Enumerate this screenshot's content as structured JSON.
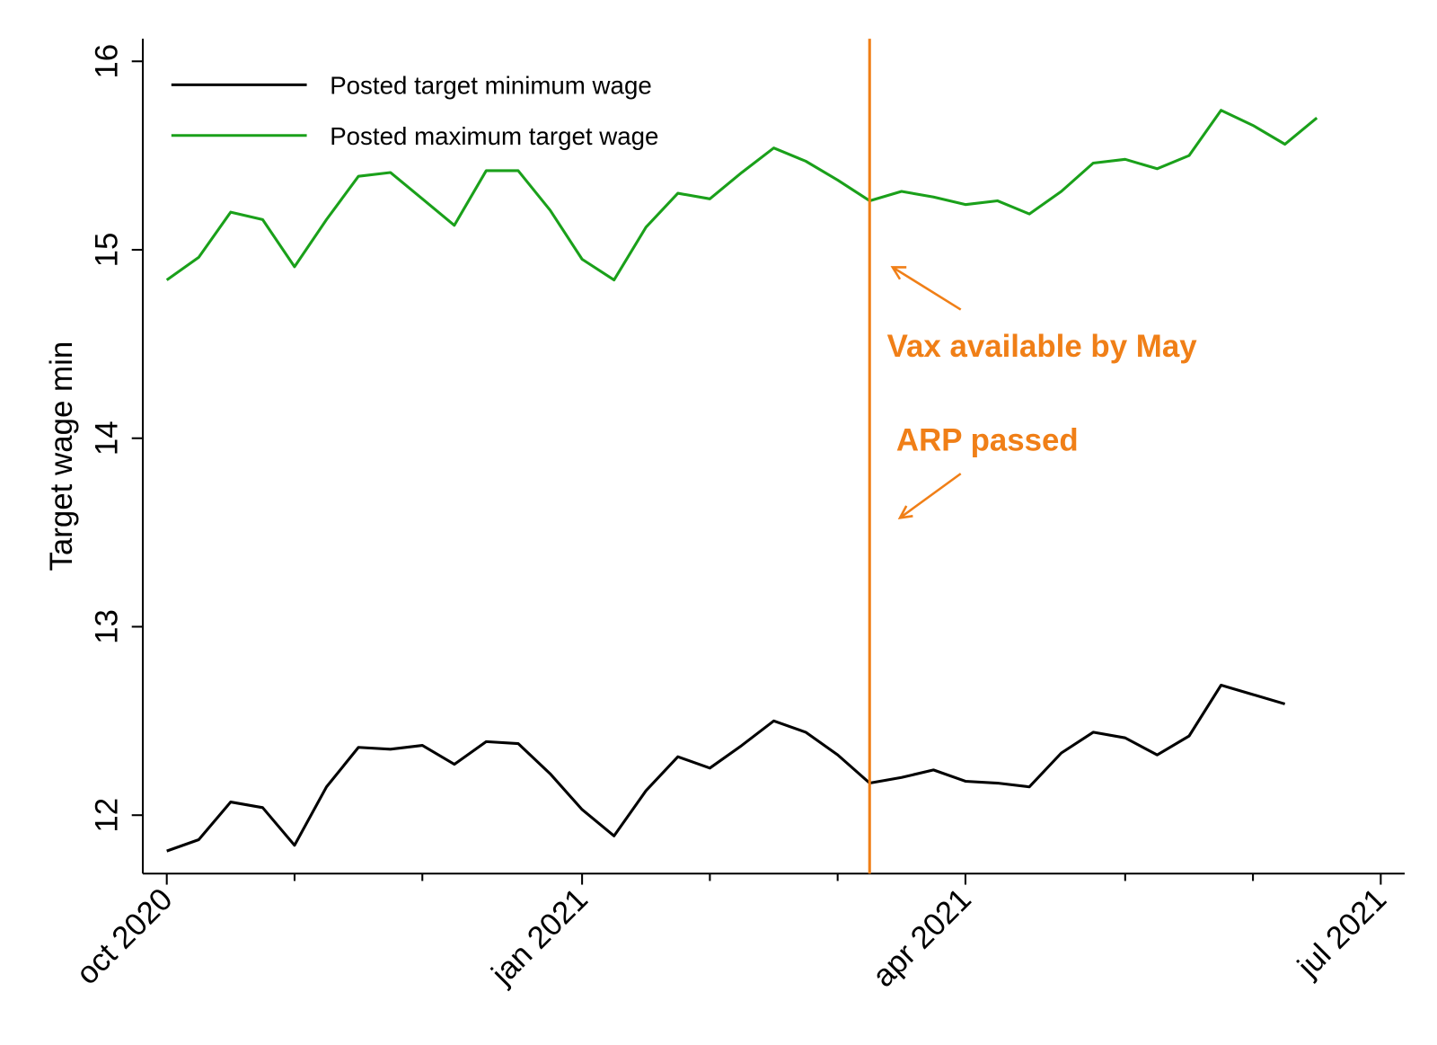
{
  "chart_data": {
    "type": "line",
    "ylabel": "Target wage min",
    "x": [
      0,
      1,
      2,
      3,
      4,
      5,
      6,
      7,
      8,
      9,
      10,
      11,
      12,
      13,
      14,
      15,
      16,
      17,
      18,
      19,
      20,
      21,
      22,
      23,
      24,
      25,
      26,
      27,
      28,
      29,
      30,
      31,
      32,
      33,
      34,
      35,
      36
    ],
    "series": [
      {
        "name": "Posted target minimum wage",
        "color": "#000000",
        "values": [
          11.81,
          11.87,
          12.07,
          12.04,
          11.84,
          12.15,
          12.36,
          12.35,
          12.37,
          12.27,
          12.39,
          12.38,
          12.22,
          12.03,
          11.89,
          12.13,
          12.31,
          12.25,
          12.37,
          12.5,
          12.44,
          12.32,
          12.17,
          12.2,
          12.24,
          12.18,
          12.17,
          12.15,
          12.33,
          12.44,
          12.41,
          12.32,
          12.42,
          12.69,
          12.64,
          12.59,
          null
        ]
      },
      {
        "name": "Posted maximum target wage",
        "color": "#1aa01a",
        "values": [
          14.84,
          14.96,
          15.2,
          15.16,
          14.91,
          15.16,
          15.39,
          15.41,
          15.27,
          15.13,
          15.42,
          15.42,
          15.21,
          14.95,
          14.84,
          15.12,
          15.3,
          15.27,
          15.41,
          15.54,
          15.47,
          15.37,
          15.26,
          15.31,
          15.28,
          15.24,
          15.26,
          15.19,
          15.31,
          15.46,
          15.48,
          15.43,
          15.5,
          15.74,
          15.66,
          15.56,
          15.7
        ]
      }
    ],
    "xlim": [
      -0.75,
      38.75
    ],
    "xticks": [
      {
        "value": 0,
        "label": "oct 2020"
      },
      {
        "value": 13,
        "label": "jan 2021"
      },
      {
        "value": 25,
        "label": "apr 2021"
      },
      {
        "value": 38,
        "label": "jul 2021"
      }
    ],
    "xminorticks": [
      4,
      8,
      17,
      21,
      30,
      34
    ],
    "ylim": [
      11.69,
      16.12
    ],
    "yticks": [
      12,
      13,
      14,
      15,
      16
    ],
    "vline": {
      "x": 22,
      "color": "#f07f17"
    },
    "annotations": [
      "Vax available by May",
      "ARP passed"
    ],
    "legend": "top-left",
    "grid": false
  }
}
